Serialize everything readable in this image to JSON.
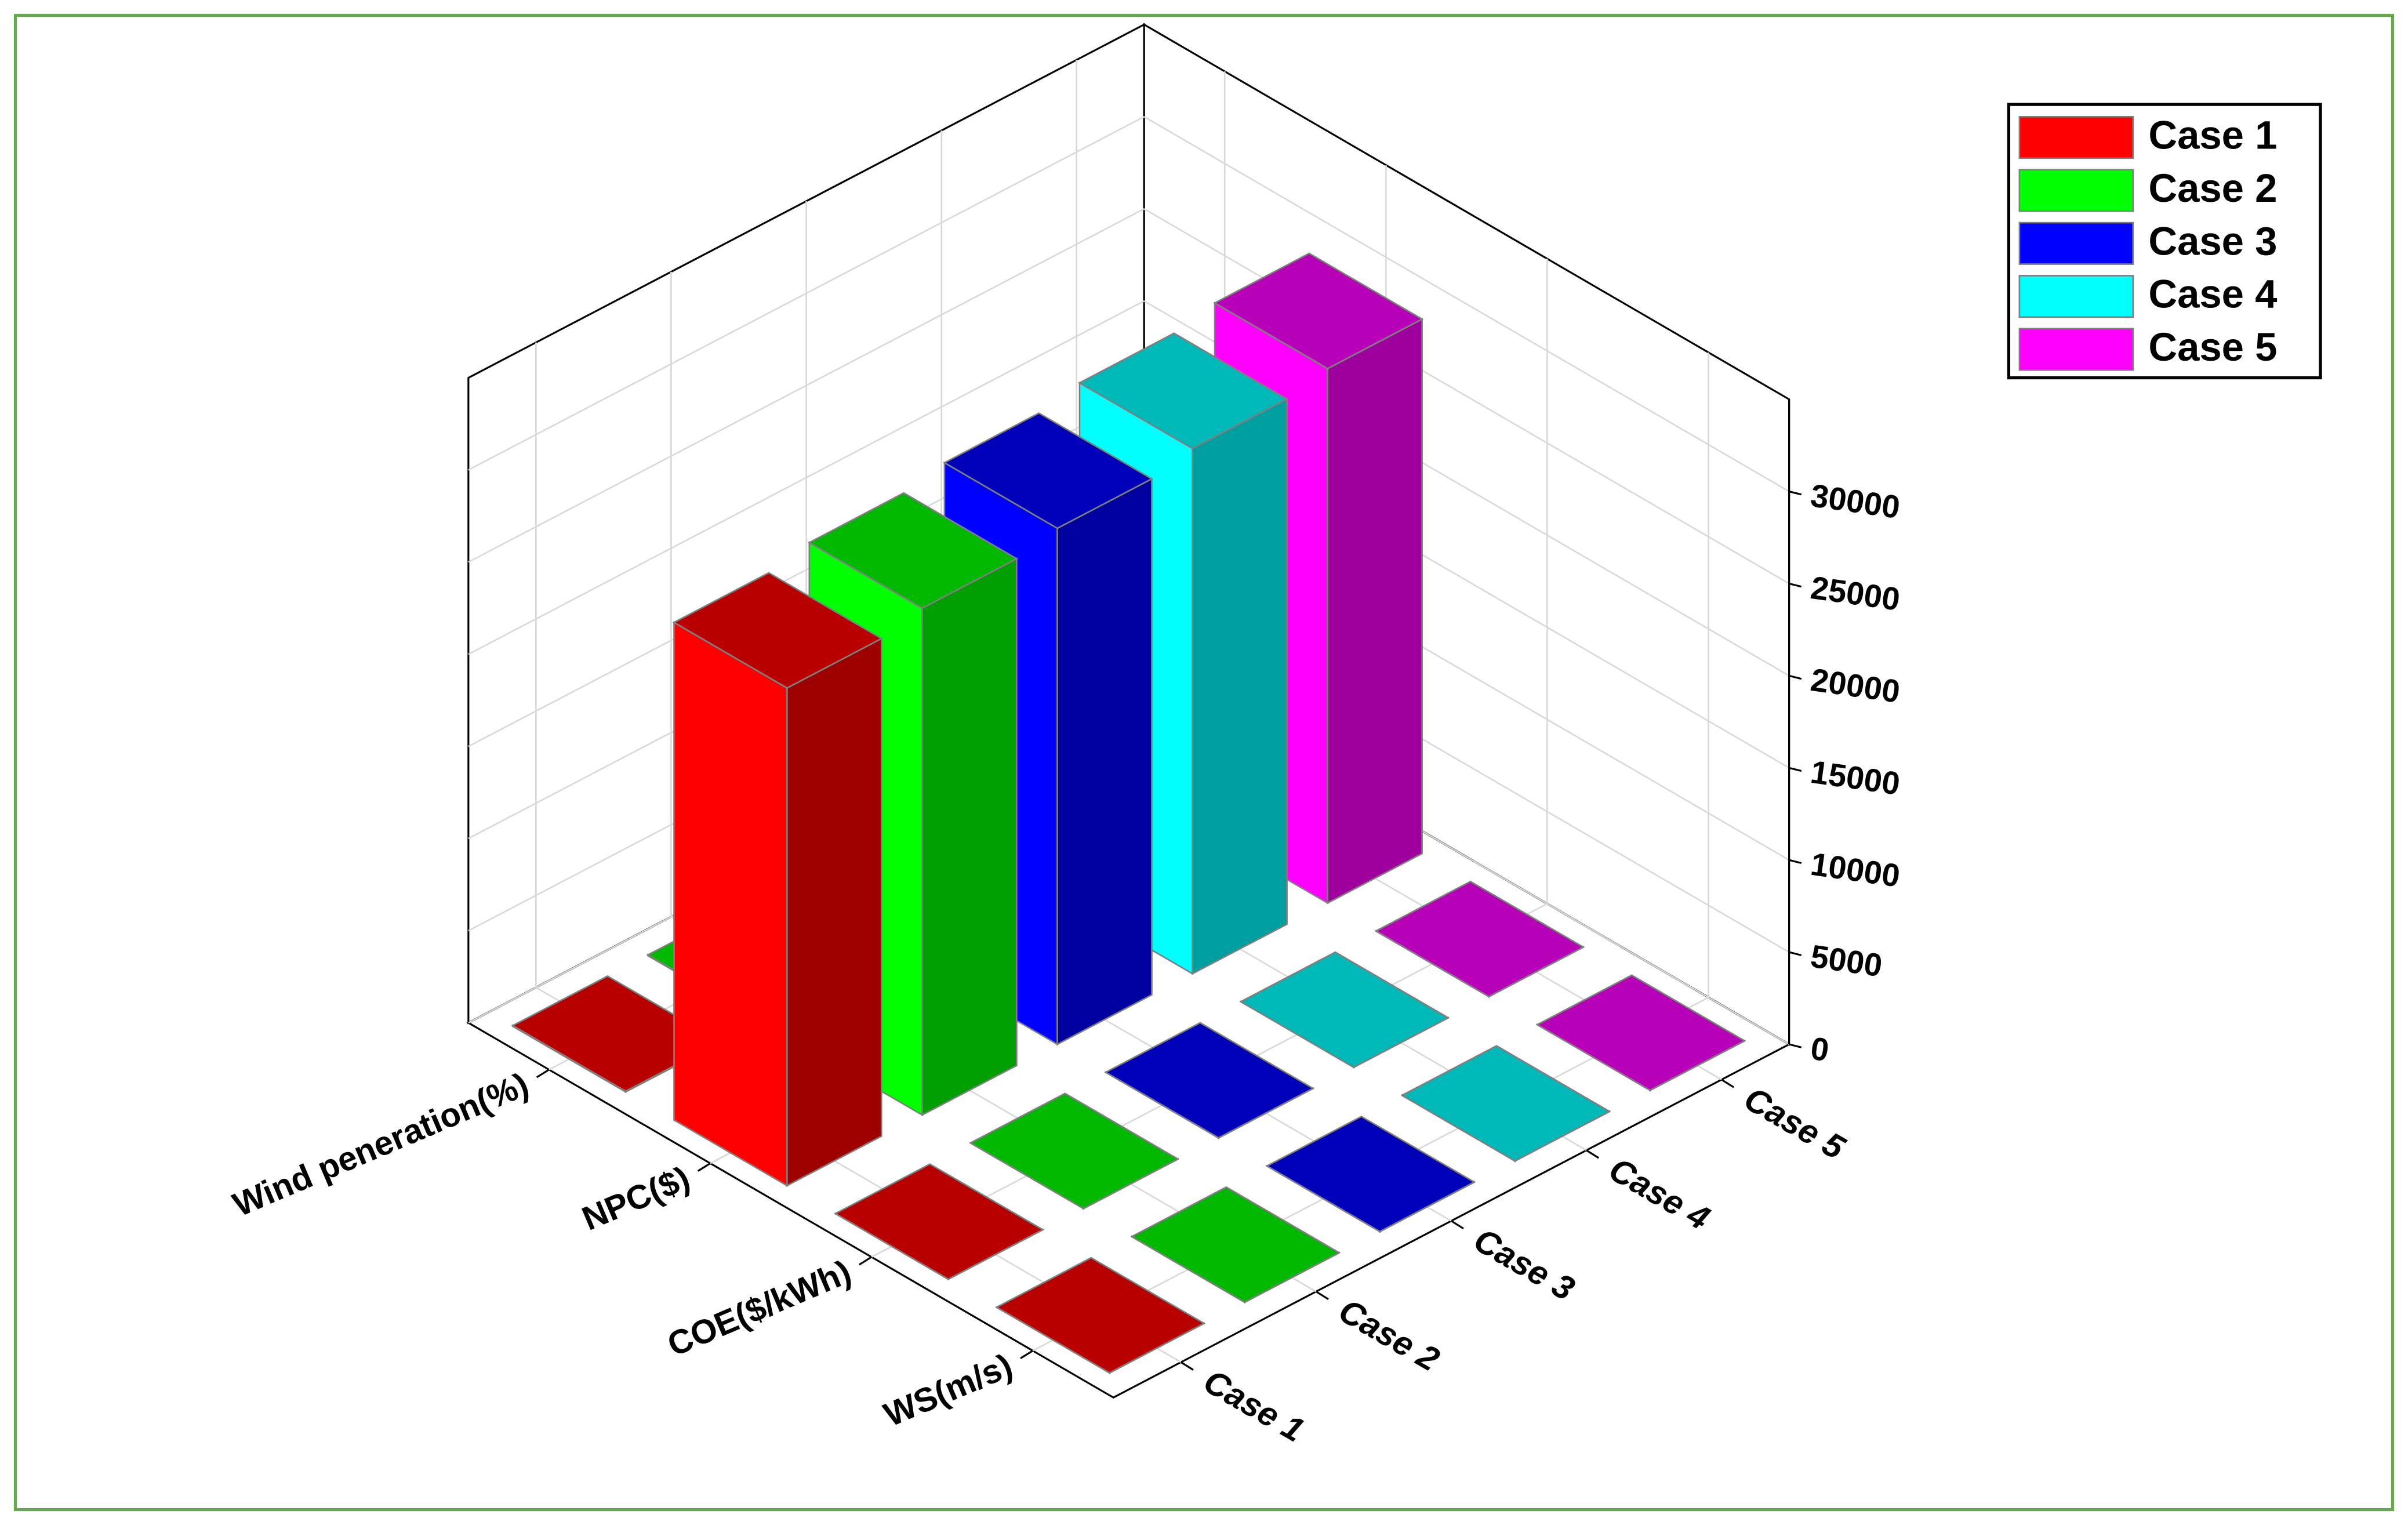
{
  "chart_data": {
    "type": "bar3d",
    "categories": [
      "Wind peneration(%)",
      "NPC($)",
      "COE($/kWh)",
      "WS(m/s)"
    ],
    "series": [
      {
        "name": "Case 1",
        "color": "#ff0000",
        "values": [
          40,
          27000,
          0.25,
          5.5
        ]
      },
      {
        "name": "Case 2",
        "color": "#00ff00",
        "values": [
          40,
          27500,
          0.25,
          5.5
        ]
      },
      {
        "name": "Case 3",
        "color": "#0000ff",
        "values": [
          40,
          28000,
          0.25,
          5.5
        ]
      },
      {
        "name": "Case 4",
        "color": "#00ffff",
        "values": [
          40,
          28500,
          0.25,
          5.5
        ]
      },
      {
        "name": "Case 5",
        "color": "#ff00ff",
        "values": [
          40,
          29000,
          0.25,
          5.5
        ]
      }
    ],
    "zlim": [
      0,
      35000
    ],
    "zticks": [
      0,
      5000,
      10000,
      15000,
      20000,
      25000,
      30000
    ],
    "grid": true,
    "legend": "upper right"
  }
}
